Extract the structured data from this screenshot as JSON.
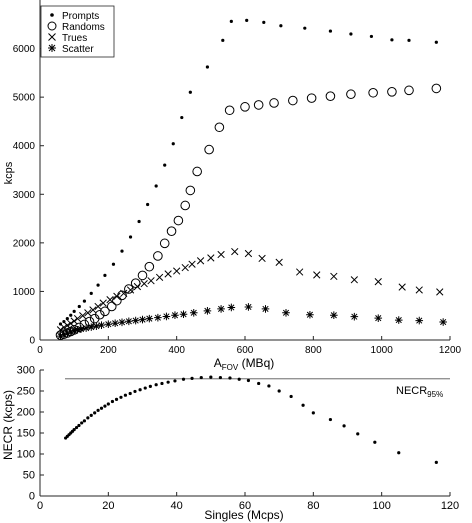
{
  "chart_data": [
    {
      "type": "scatter",
      "title": "",
      "xlabel": "A",
      "xlabel_subscript": "FOV",
      "xlabel_unit": " (MBq)",
      "ylabel": "kcps",
      "xlim": [
        0,
        1200
      ],
      "ylim": [
        0,
        7000
      ],
      "xticks": [
        "0",
        "200",
        "400",
        "600",
        "800",
        "1000",
        "1200"
      ],
      "yticks": [
        "0",
        "1000",
        "2000",
        "3000",
        "4000",
        "5000",
        "6000"
      ],
      "grid": false,
      "legend_position": "top-left",
      "series": [
        {
          "name": "Prompts",
          "marker": "dot",
          "points": [
            [
              60,
              330
            ],
            [
              70,
              380
            ],
            [
              80,
              440
            ],
            [
              90,
              510
            ],
            [
              100,
              590
            ],
            [
              115,
              690
            ],
            [
              130,
              800
            ],
            [
              150,
              960
            ],
            [
              170,
              1130
            ],
            [
              190,
              1330
            ],
            [
              215,
              1560
            ],
            [
              240,
              1830
            ],
            [
              265,
              2120
            ],
            [
              290,
              2440
            ],
            [
              315,
              2790
            ],
            [
              340,
              3170
            ],
            [
              365,
              3600
            ],
            [
              390,
              4040
            ],
            [
              415,
              4580
            ],
            [
              440,
              5100
            ],
            [
              490,
              5620
            ],
            [
              535,
              6170
            ],
            [
              560,
              6560
            ],
            [
              605,
              6580
            ],
            [
              655,
              6540
            ],
            [
              705,
              6470
            ],
            [
              775,
              6420
            ],
            [
              850,
              6360
            ],
            [
              910,
              6300
            ],
            [
              970,
              6250
            ],
            [
              1030,
              6180
            ],
            [
              1080,
              6170
            ],
            [
              1160,
              6130
            ]
          ]
        },
        {
          "name": "Randoms",
          "marker": "circle",
          "points": [
            [
              60,
              100
            ],
            [
              70,
              120
            ],
            [
              80,
              145
            ],
            [
              90,
              175
            ],
            [
              100,
              210
            ],
            [
              115,
              260
            ],
            [
              130,
              320
            ],
            [
              145,
              380
            ],
            [
              160,
              440
            ],
            [
              175,
              520
            ],
            [
              190,
              590
            ],
            [
              210,
              690
            ],
            [
              225,
              810
            ],
            [
              240,
              920
            ],
            [
              260,
              1050
            ],
            [
              280,
              1170
            ],
            [
              300,
              1330
            ],
            [
              320,
              1510
            ],
            [
              345,
              1730
            ],
            [
              365,
              1990
            ],
            [
              385,
              2240
            ],
            [
              405,
              2460
            ],
            [
              425,
              2770
            ],
            [
              440,
              3080
            ],
            [
              460,
              3470
            ],
            [
              495,
              3920
            ],
            [
              525,
              4380
            ],
            [
              555,
              4730
            ],
            [
              600,
              4800
            ],
            [
              640,
              4840
            ],
            [
              685,
              4880
            ],
            [
              740,
              4930
            ],
            [
              795,
              4980
            ],
            [
              850,
              5020
            ],
            [
              910,
              5060
            ],
            [
              975,
              5090
            ],
            [
              1030,
              5110
            ],
            [
              1080,
              5140
            ],
            [
              1160,
              5180
            ]
          ]
        },
        {
          "name": "Trues",
          "marker": "x",
          "points": [
            [
              60,
              210
            ],
            [
              70,
              260
            ],
            [
              80,
              300
            ],
            [
              90,
              340
            ],
            [
              100,
              390
            ],
            [
              110,
              440
            ],
            [
              125,
              500
            ],
            [
              140,
              560
            ],
            [
              155,
              620
            ],
            [
              170,
              690
            ],
            [
              185,
              760
            ],
            [
              205,
              830
            ],
            [
              225,
              900
            ],
            [
              245,
              960
            ],
            [
              265,
              1030
            ],
            [
              285,
              1100
            ],
            [
              305,
              1160
            ],
            [
              325,
              1220
            ],
            [
              350,
              1290
            ],
            [
              375,
              1360
            ],
            [
              400,
              1420
            ],
            [
              425,
              1490
            ],
            [
              445,
              1560
            ],
            [
              470,
              1630
            ],
            [
              500,
              1690
            ],
            [
              530,
              1760
            ],
            [
              570,
              1820
            ],
            [
              610,
              1780
            ],
            [
              650,
              1680
            ],
            [
              700,
              1600
            ],
            [
              760,
              1400
            ],
            [
              810,
              1340
            ],
            [
              860,
              1310
            ],
            [
              920,
              1240
            ],
            [
              990,
              1200
            ],
            [
              1060,
              1090
            ],
            [
              1110,
              1030
            ],
            [
              1170,
              990
            ]
          ]
        },
        {
          "name": "Scatter",
          "marker": "asterisk",
          "points": [
            [
              60,
              80
            ],
            [
              70,
              110
            ],
            [
              80,
              140
            ],
            [
              90,
              165
            ],
            [
              100,
              190
            ],
            [
              110,
              210
            ],
            [
              120,
              225
            ],
            [
              135,
              245
            ],
            [
              150,
              265
            ],
            [
              165,
              285
            ],
            [
              180,
              305
            ],
            [
              200,
              325
            ],
            [
              220,
              345
            ],
            [
              240,
              365
            ],
            [
              260,
              385
            ],
            [
              280,
              400
            ],
            [
              300,
              420
            ],
            [
              320,
              440
            ],
            [
              345,
              460
            ],
            [
              370,
              485
            ],
            [
              395,
              510
            ],
            [
              420,
              530
            ],
            [
              450,
              560
            ],
            [
              490,
              600
            ],
            [
              530,
              640
            ],
            [
              560,
              670
            ],
            [
              610,
              680
            ],
            [
              660,
              640
            ],
            [
              720,
              560
            ],
            [
              790,
              520
            ],
            [
              860,
              510
            ],
            [
              920,
              480
            ],
            [
              990,
              450
            ],
            [
              1050,
              410
            ],
            [
              1110,
              400
            ],
            [
              1180,
              370
            ]
          ]
        }
      ]
    },
    {
      "type": "scatter",
      "title": "",
      "xlabel": "Singles (Mcps)",
      "ylabel": "NECR (kcps)",
      "xlim": [
        0,
        120
      ],
      "ylim": [
        0,
        300
      ],
      "xticks": [
        "0",
        "20",
        "40",
        "60",
        "80",
        "100",
        "120"
      ],
      "yticks": [
        "0",
        "50",
        "100",
        "150",
        "200",
        "250",
        "300"
      ],
      "grid": false,
      "reference_line": {
        "y": 279,
        "label": "NECR",
        "label_subscript": "95%"
      },
      "series": [
        {
          "name": "",
          "marker": "dot",
          "points": [
            [
              7.5,
              138
            ],
            [
              8,
              142
            ],
            [
              8.5,
              146
            ],
            [
              9,
              150
            ],
            [
              9.5,
              154
            ],
            [
              10,
              158
            ],
            [
              10.7,
              163
            ],
            [
              11.4,
              168
            ],
            [
              12.2,
              174
            ],
            [
              13,
              179
            ],
            [
              14,
              186
            ],
            [
              15,
              192
            ],
            [
              16,
              198
            ],
            [
              17,
              204
            ],
            [
              18,
              209
            ],
            [
              19,
              214
            ],
            [
              20,
              219
            ],
            [
              21.2,
              225
            ],
            [
              22.4,
              230
            ],
            [
              23.7,
              235
            ],
            [
              25,
              240
            ],
            [
              26.4,
              244
            ],
            [
              27.8,
              249
            ],
            [
              29.3,
              253
            ],
            [
              30.8,
              257
            ],
            [
              32.3,
              261
            ],
            [
              34,
              265
            ],
            [
              35.7,
              268
            ],
            [
              37.5,
              271
            ],
            [
              39.5,
              274
            ],
            [
              42,
              278
            ],
            [
              44.5,
              280
            ],
            [
              47.2,
              282
            ],
            [
              50,
              283
            ],
            [
              52.8,
              282
            ],
            [
              55.6,
              281
            ],
            [
              58.3,
              278
            ],
            [
              61,
              275
            ],
            [
              64,
              268
            ],
            [
              67,
              262
            ],
            [
              70,
              250
            ],
            [
              73.5,
              237
            ],
            [
              77,
              216
            ],
            [
              80,
              198
            ],
            [
              85,
              182
            ],
            [
              89,
              167
            ],
            [
              93,
              148
            ],
            [
              98,
              128
            ],
            [
              105,
              103
            ],
            [
              116,
              80
            ]
          ]
        }
      ]
    }
  ]
}
